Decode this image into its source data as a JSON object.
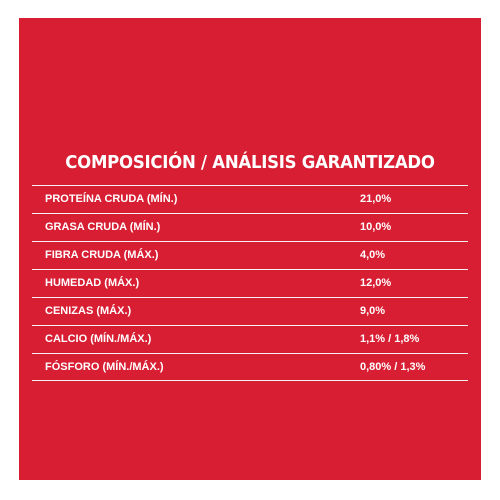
{
  "colors": {
    "panel_background": "#d71e33",
    "text": "#ffffff",
    "rule": "#f2f2f2"
  },
  "title": "COMPOSICIÓN / ANÁLISIS GARANTIZADO",
  "rows": [
    {
      "label": "PROTEÍNA CRUDA (MÍN.)",
      "value": "21,0%"
    },
    {
      "label": "GRASA CRUDA (MÍN.)",
      "value": "10,0%"
    },
    {
      "label": "FIBRA CRUDA (MÁX.)",
      "value": "4,0%"
    },
    {
      "label": "HUMEDAD (MÁX.)",
      "value": "12,0%"
    },
    {
      "label": "CENIZAS (MÁX.)",
      "value": "9,0%"
    },
    {
      "label": "CALCIO (MÍN./MÁX.)",
      "value": "1,1% / 1,8%"
    },
    {
      "label": "FÓSFORO (MÍN./MÁX.)",
      "value": "0,80% / 1,3%"
    }
  ]
}
